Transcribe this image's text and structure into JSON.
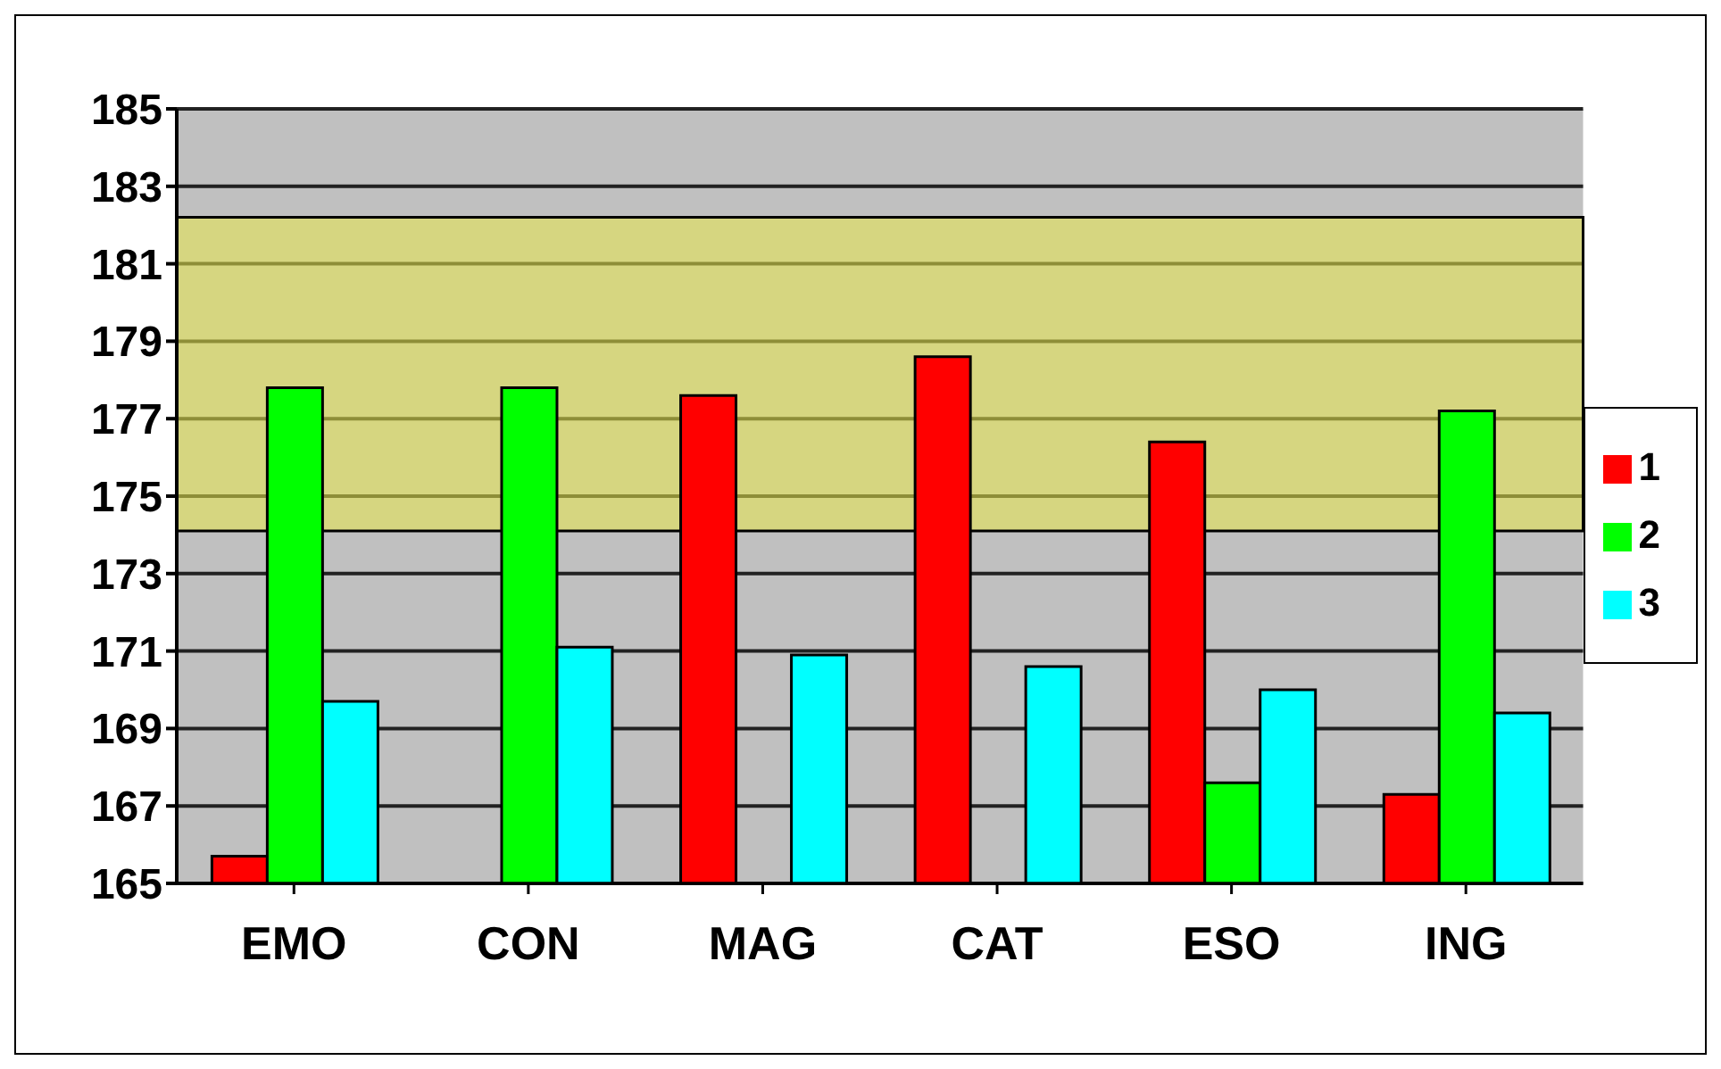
{
  "chart_data": {
    "type": "bar",
    "categories": [
      "EMO",
      "CON",
      "MAG",
      "CAT",
      "ESO",
      "ING"
    ],
    "series": [
      {
        "name": "1",
        "color": "#ff0000",
        "values": [
          165.7,
          165,
          177.6,
          178.6,
          176.4,
          167.3
        ]
      },
      {
        "name": "2",
        "color": "#00ff00",
        "values": [
          177.8,
          177.8,
          165,
          165,
          167.6,
          177.2
        ]
      },
      {
        "name": "3",
        "color": "#00ffff",
        "values": [
          169.7,
          171.1,
          170.9,
          170.6,
          170.0,
          169.4
        ]
      }
    ],
    "ylim": [
      165,
      185
    ],
    "yticks": [
      165,
      167,
      169,
      171,
      173,
      175,
      177,
      179,
      181,
      183,
      185
    ],
    "grid": "y",
    "legend": "right",
    "bands": [
      {
        "axis": "y",
        "from": 174.1,
        "to": 182.2,
        "color": "#e8e84a"
      }
    ]
  }
}
